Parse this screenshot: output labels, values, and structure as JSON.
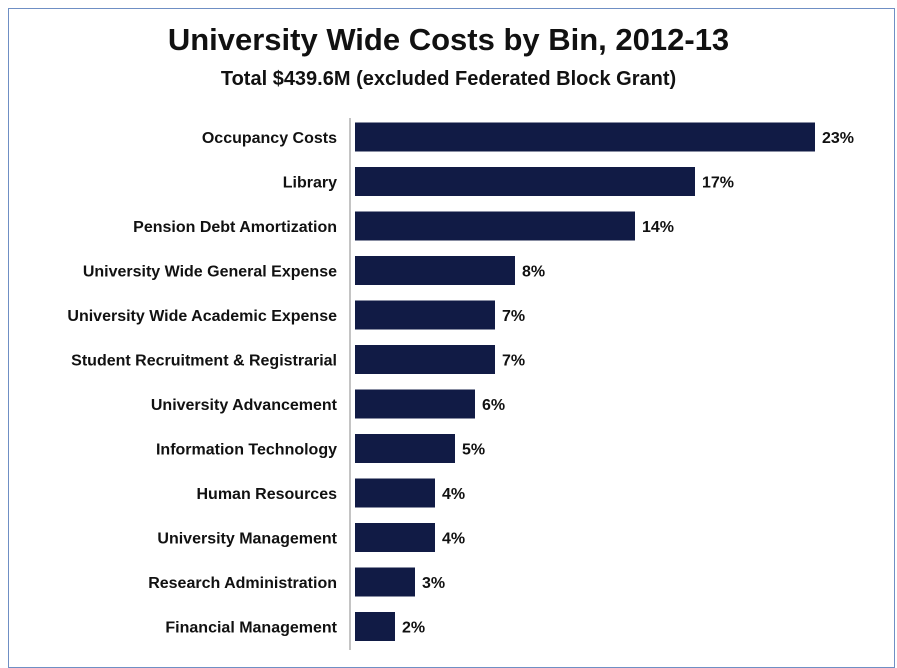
{
  "chart_data": {
    "type": "bar",
    "orientation": "horizontal",
    "title": "University Wide Costs by Bin, 2012-13",
    "subtitle": "Total $439.6M (excluded Federated Block Grant)",
    "categories": [
      "Occupancy Costs",
      "Library",
      "Pension Debt Amortization",
      "University Wide General Expense",
      "University Wide Academic Expense",
      "Student Recruitment & Registrarial",
      "University Advancement",
      "Information Technology",
      "Human Resources",
      "University Management",
      "Research Administration",
      "Financial Management"
    ],
    "values": [
      23,
      17,
      14,
      8,
      7,
      7,
      6,
      5,
      4,
      4,
      3,
      2
    ],
    "value_labels": [
      "23%",
      "17%",
      "14%",
      "8%",
      "7%",
      "7%",
      "6%",
      "5%",
      "4%",
      "4%",
      "3%",
      "2%"
    ],
    "xlim": [
      0,
      23
    ],
    "grid": false,
    "bar_color": "#111b45",
    "frame_color": "#6f8fc4"
  }
}
